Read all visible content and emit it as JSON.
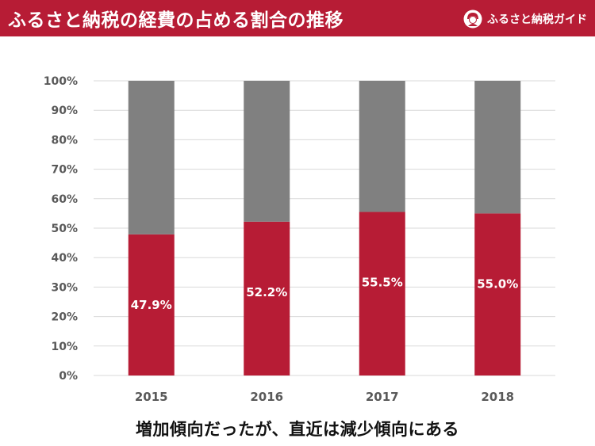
{
  "header": {
    "title": "ふるさと納税の経費の占める割合の推移",
    "brand": "ふるさと納税ガイド",
    "brand_icon": "kimono-girl-icon"
  },
  "colors": {
    "accent": "#b71c35",
    "remainder": "#808080",
    "grid": "#d9d9d9",
    "tick_text": "#595959"
  },
  "chart_data": {
    "type": "bar",
    "stacked": true,
    "categories": [
      "2015",
      "2016",
      "2017",
      "2018"
    ],
    "series": [
      {
        "values": [
          47.9,
          52.2,
          55.5,
          55.0
        ],
        "color": "#b71c35"
      },
      {
        "values": [
          52.1,
          47.8,
          44.5,
          45.0
        ],
        "color": "#808080"
      }
    ],
    "data_labels": [
      "47.9%",
      "52.2%",
      "55.5%",
      "55.0%"
    ],
    "ylim": [
      0,
      100
    ],
    "yticks": [
      "0%",
      "10%",
      "20%",
      "30%",
      "40%",
      "50%",
      "60%",
      "70%",
      "80%",
      "90%",
      "100%"
    ],
    "grid": true,
    "legend": "none"
  },
  "caption": "増加傾向だったが、直近は減少傾向にある"
}
